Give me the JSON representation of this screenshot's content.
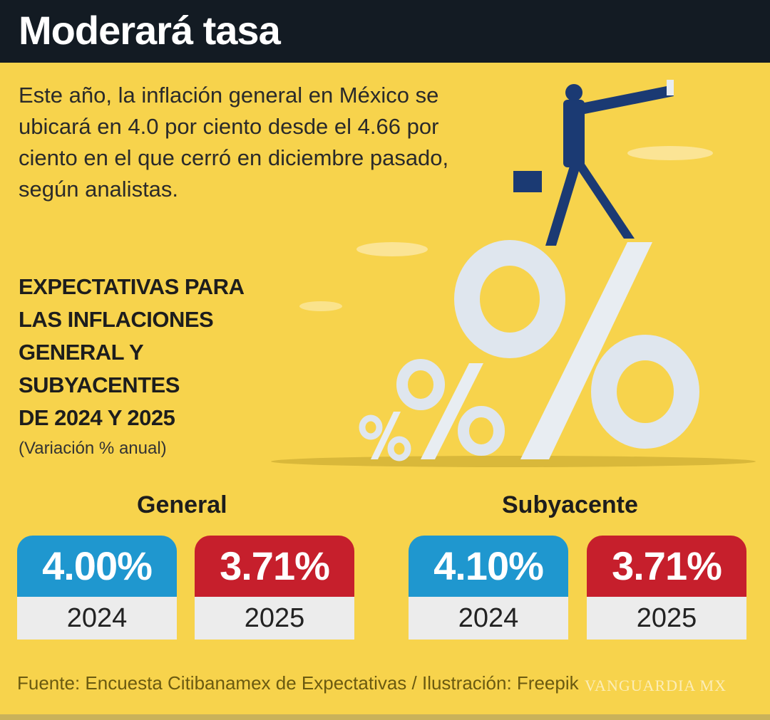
{
  "header": {
    "title": "Moderará tasa"
  },
  "intro": "Este año, la inflación general en México se ubicará en 4.0 por ciento desde el 4.66 por ciento en el que cerró en diciembre pasado, según analistas.",
  "subhead": {
    "lines": [
      "EXPECTATIVAS PARA",
      "LAS INFLACIONES",
      "GENERAL Y",
      "SUBYACENTES",
      "DE 2024 Y 2025"
    ],
    "note": "(Variación % anual)"
  },
  "groups": [
    {
      "label": "General",
      "cards": [
        {
          "value": "4.00%",
          "year": "2024",
          "color": "#1f97cf"
        },
        {
          "value": "3.71%",
          "year": "2025",
          "color": "#c61f2c"
        }
      ]
    },
    {
      "label": "Subyacente",
      "cards": [
        {
          "value": "4.10%",
          "year": "2024",
          "color": "#1f97cf"
        },
        {
          "value": "3.71%",
          "year": "2025",
          "color": "#c61f2c"
        }
      ]
    }
  ],
  "source": "Fuente: Encuesta Citibanamex de Expectativas / Ilustración: Freepik",
  "watermark": "VANGUARDIA MX",
  "illustration": {
    "icon": "businessman-telescope-on-percent-signs-illustration"
  },
  "colors": {
    "background": "#f7d34c",
    "header": "#131b23",
    "blue": "#1f97cf",
    "red": "#c61f2c"
  }
}
